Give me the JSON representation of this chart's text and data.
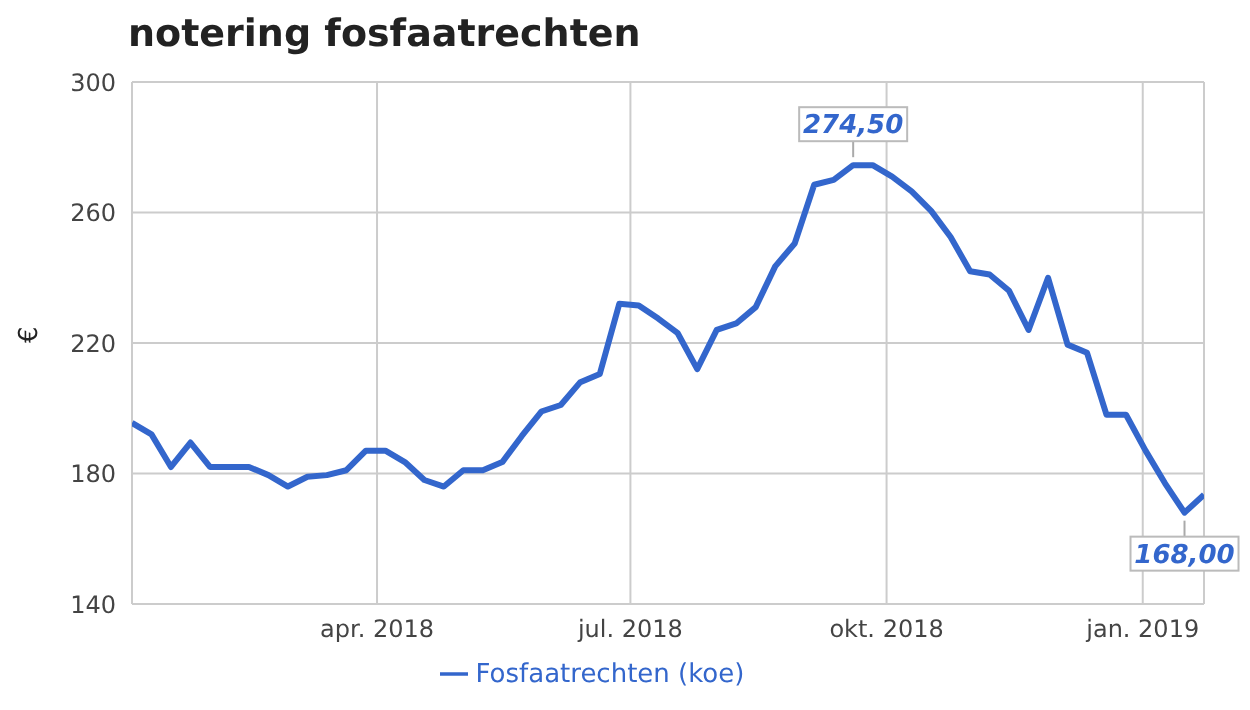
{
  "chart_data": {
    "type": "line",
    "title": "notering fosfaatrechten",
    "ylabel": "€",
    "x": [
      "2018-01-03",
      "2018-01-10",
      "2018-01-17",
      "2018-01-24",
      "2018-01-31",
      "2018-02-07",
      "2018-02-14",
      "2018-02-21",
      "2018-02-28",
      "2018-03-07",
      "2018-03-14",
      "2018-03-21",
      "2018-03-28",
      "2018-04-04",
      "2018-04-11",
      "2018-04-18",
      "2018-04-25",
      "2018-05-02",
      "2018-05-09",
      "2018-05-16",
      "2018-05-23",
      "2018-05-30",
      "2018-06-06",
      "2018-06-13",
      "2018-06-20",
      "2018-06-27",
      "2018-07-04",
      "2018-07-11",
      "2018-07-18",
      "2018-07-25",
      "2018-08-01",
      "2018-08-08",
      "2018-08-15",
      "2018-08-22",
      "2018-08-29",
      "2018-09-05",
      "2018-09-12",
      "2018-09-19",
      "2018-09-26",
      "2018-10-03",
      "2018-10-10",
      "2018-10-17",
      "2018-10-24",
      "2018-10-31",
      "2018-11-07",
      "2018-11-14",
      "2018-11-21",
      "2018-11-28",
      "2018-12-05",
      "2018-12-12",
      "2018-12-19",
      "2018-12-26",
      "2019-01-02",
      "2019-01-09",
      "2019-01-16",
      "2019-01-23"
    ],
    "series": [
      {
        "name": "Fosfaatrechten (koe)",
        "color": "#3366cc",
        "values": [
          195.5,
          192,
          182,
          189.5,
          182,
          182,
          182,
          179.5,
          176,
          179,
          179.5,
          181,
          187,
          187,
          183.5,
          178,
          176,
          181,
          181,
          183.5,
          191.5,
          199,
          201,
          208,
          210.5,
          232,
          231.5,
          227.5,
          223,
          212,
          224,
          226,
          231,
          243.5,
          250.5,
          268.5,
          270,
          274.5,
          274.5,
          271,
          266.5,
          260.5,
          252.5,
          242,
          241,
          236,
          224,
          240,
          219.5,
          217,
          198,
          198,
          187,
          177,
          168,
          173.5
        ],
        "value_labels": [
          null,
          null,
          null,
          null,
          null,
          null,
          null,
          null,
          null,
          null,
          null,
          null,
          null,
          null,
          null,
          null,
          null,
          null,
          null,
          null,
          null,
          null,
          null,
          null,
          null,
          null,
          null,
          null,
          null,
          null,
          null,
          null,
          null,
          null,
          null,
          null,
          null,
          "274,50",
          null,
          null,
          null,
          null,
          null,
          null,
          null,
          null,
          null,
          null,
          null,
          null,
          null,
          null,
          null,
          null,
          "168,00",
          null
        ]
      }
    ],
    "xlim": [
      "2018-01-03",
      "2019-01-23"
    ],
    "xticks": [
      {
        "value": "2018-04-01",
        "label": "apr. 2018"
      },
      {
        "value": "2018-07-01",
        "label": "jul. 2018"
      },
      {
        "value": "2018-10-01",
        "label": "okt. 2018"
      },
      {
        "value": "2019-01-01",
        "label": "jan. 2019"
      }
    ],
    "ylim": [
      140,
      300
    ],
    "yticks": [
      140,
      180,
      220,
      260,
      300
    ],
    "grid": true,
    "legend": "bottom",
    "marker": "none",
    "line_style": "solid"
  }
}
